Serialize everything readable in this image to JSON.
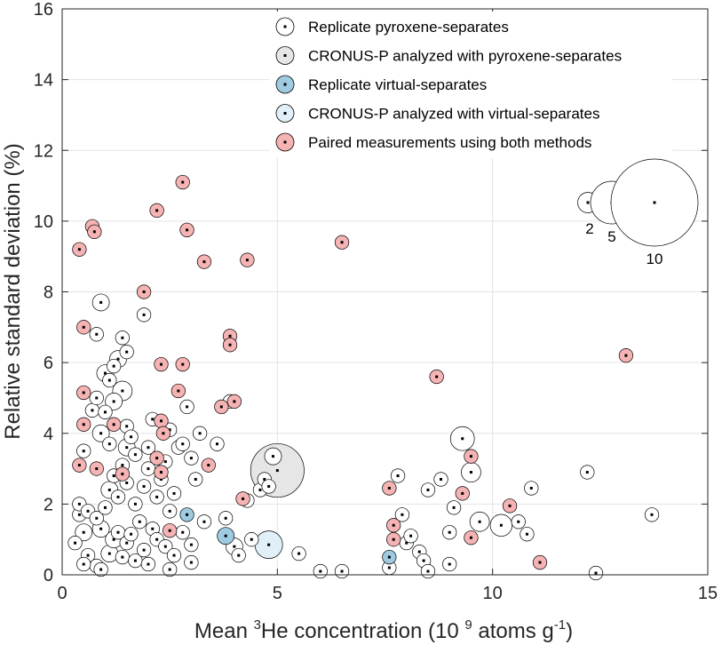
{
  "chart_data": {
    "type": "scatter",
    "xlabel": {
      "prefix": "Mean ",
      "sup": "3",
      "mid": "He concentration (10 ",
      "sup2": "9",
      "mid2": " atoms g",
      "sup3": "-1",
      "suffix": ")"
    },
    "ylabel": "Relative standard deviation (%)",
    "xlim": [
      0,
      15
    ],
    "ylim": [
      0,
      16
    ],
    "xticks": [
      "0",
      "5",
      "10",
      "15"
    ],
    "yticks": [
      "0",
      "2",
      "4",
      "6",
      "8",
      "10",
      "12",
      "14",
      "16"
    ],
    "grid": true,
    "legend_position": "top-center",
    "colors": {
      "white": "#ffffff",
      "gray": "#e6e6e6",
      "blue": "#9ecbe0",
      "lightblue": "#e1f0f8",
      "pink": "#f6b3b3",
      "edge": "#000000",
      "grid": "#e3e3e3"
    },
    "size_key": {
      "labels": [
        "2",
        "5",
        "10"
      ],
      "n": [
        2,
        5,
        10
      ]
    },
    "series": [
      {
        "name": "Replicate pyroxene-separates",
        "color": "#ffffff",
        "points": [
          [
            0.4,
            1.7,
            2
          ],
          [
            0.4,
            2.0,
            2
          ],
          [
            0.5,
            1.2,
            3
          ],
          [
            0.6,
            0.55,
            2
          ],
          [
            0.8,
            0.25,
            2
          ],
          [
            0.9,
            0.15,
            2
          ],
          [
            0.6,
            1.8,
            2
          ],
          [
            0.8,
            1.6,
            2
          ],
          [
            0.9,
            1.3,
            3
          ],
          [
            1.0,
            1.9,
            2
          ],
          [
            1.1,
            0.6,
            3
          ],
          [
            1.2,
            1.0,
            3
          ],
          [
            1.3,
            1.2,
            2
          ],
          [
            1.4,
            0.5,
            2
          ],
          [
            1.5,
            0.9,
            2
          ],
          [
            1.6,
            1.15,
            2
          ],
          [
            1.7,
            0.4,
            2
          ],
          [
            1.8,
            1.5,
            2
          ],
          [
            1.9,
            0.7,
            2
          ],
          [
            2.0,
            0.3,
            2
          ],
          [
            2.1,
            1.3,
            2
          ],
          [
            2.2,
            1.0,
            2
          ],
          [
            2.4,
            0.8,
            2
          ],
          [
            2.5,
            0.15,
            2
          ],
          [
            2.6,
            0.55,
            2
          ],
          [
            2.8,
            1.2,
            2
          ],
          [
            3.0,
            0.85,
            2
          ],
          [
            3.0,
            0.35,
            2
          ],
          [
            3.3,
            1.5,
            2
          ],
          [
            3.8,
            1.6,
            2
          ],
          [
            4.0,
            0.8,
            3
          ],
          [
            4.1,
            0.55,
            2
          ],
          [
            4.4,
            1.0,
            2
          ],
          [
            1.1,
            2.4,
            3
          ],
          [
            1.3,
            2.2,
            2
          ],
          [
            1.2,
            2.8,
            2
          ],
          [
            1.4,
            3.1,
            2
          ],
          [
            1.5,
            2.6,
            2
          ],
          [
            1.7,
            2.0,
            2
          ],
          [
            1.9,
            2.5,
            2
          ],
          [
            2.0,
            3.0,
            2
          ],
          [
            2.2,
            2.2,
            2
          ],
          [
            2.3,
            2.7,
            2
          ],
          [
            2.5,
            1.8,
            2
          ],
          [
            2.6,
            2.3,
            2
          ],
          [
            2.7,
            3.6,
            2
          ],
          [
            3.0,
            3.3,
            2
          ],
          [
            3.1,
            2.7,
            2
          ],
          [
            3.2,
            4.0,
            2
          ],
          [
            3.6,
            3.7,
            2
          ],
          [
            4.3,
            2.1,
            2
          ],
          [
            4.6,
            2.4,
            2
          ],
          [
            4.7,
            2.7,
            2
          ],
          [
            4.8,
            2.5,
            2
          ],
          [
            4.9,
            3.35,
            3
          ],
          [
            0.7,
            4.65,
            2
          ],
          [
            0.9,
            4.0,
            3
          ],
          [
            1.0,
            4.6,
            2
          ],
          [
            1.1,
            3.7,
            2
          ],
          [
            1.2,
            4.9,
            3
          ],
          [
            1.4,
            5.2,
            4
          ],
          [
            1.5,
            4.2,
            2
          ],
          [
            1.5,
            3.6,
            3
          ],
          [
            1.6,
            3.9,
            2
          ],
          [
            1.7,
            3.4,
            2
          ],
          [
            2.0,
            3.6,
            2
          ],
          [
            2.1,
            4.4,
            2
          ],
          [
            2.4,
            3.2,
            2
          ],
          [
            2.5,
            4.1,
            2
          ],
          [
            2.8,
            3.7,
            2
          ],
          [
            2.9,
            4.75,
            2
          ],
          [
            0.5,
            3.5,
            2
          ],
          [
            0.8,
            5.0,
            2
          ],
          [
            1.0,
            5.7,
            3
          ],
          [
            1.3,
            6.1,
            3
          ],
          [
            1.4,
            6.7,
            2
          ],
          [
            1.1,
            5.5,
            2
          ],
          [
            0.8,
            6.8,
            2
          ],
          [
            0.9,
            7.7,
            3
          ],
          [
            1.9,
            7.35,
            2
          ],
          [
            1.2,
            5.9,
            2
          ],
          [
            1.5,
            6.3,
            2
          ],
          [
            3.9,
            4.9,
            2
          ],
          [
            0.3,
            0.9,
            2
          ],
          [
            0.5,
            0.3,
            2
          ],
          [
            5.5,
            0.6,
            2
          ],
          [
            6.0,
            0.1,
            2
          ],
          [
            6.5,
            0.1,
            2
          ],
          [
            7.6,
            0.2,
            2
          ],
          [
            7.9,
            1.7,
            2
          ],
          [
            8.0,
            0.9,
            2
          ],
          [
            8.1,
            1.1,
            2
          ],
          [
            7.8,
            2.8,
            2
          ],
          [
            8.3,
            0.65,
            2
          ],
          [
            8.4,
            0.4,
            2
          ],
          [
            8.5,
            0.1,
            2
          ],
          [
            8.5,
            2.4,
            2
          ],
          [
            8.8,
            2.7,
            2
          ],
          [
            9.0,
            1.2,
            2
          ],
          [
            9.0,
            0.3,
            2
          ],
          [
            9.1,
            1.9,
            2
          ],
          [
            9.3,
            3.85,
            6
          ],
          [
            9.5,
            2.9,
            4
          ],
          [
            9.7,
            1.5,
            4
          ],
          [
            10.2,
            1.4,
            5
          ],
          [
            10.6,
            1.5,
            2
          ],
          [
            10.8,
            1.15,
            2
          ],
          [
            10.9,
            2.45,
            2
          ],
          [
            12.2,
            2.9,
            2
          ],
          [
            12.4,
            0.05,
            2
          ],
          [
            13.7,
            1.7,
            2
          ]
        ]
      },
      {
        "name": "CRONUS-P analyzed with pyroxene-separates",
        "color": "#e6e6e6",
        "points": [
          [
            5.0,
            2.95,
            30
          ]
        ]
      },
      {
        "name": "Replicate virtual-separates",
        "color": "#9ecbe0",
        "points": [
          [
            2.9,
            1.7,
            2
          ],
          [
            3.8,
            1.1,
            3
          ],
          [
            7.6,
            0.5,
            2
          ]
        ]
      },
      {
        "name": "CRONUS-P analyzed with virtual-separates",
        "color": "#e1f0f8",
        "points": [
          [
            4.8,
            0.85,
            8
          ]
        ]
      },
      {
        "name": "Paired measurements using both methods",
        "color": "#f6b3b3",
        "points": [
          [
            0.4,
            9.2,
            2
          ],
          [
            0.7,
            9.85,
            2
          ],
          [
            0.75,
            9.7,
            2
          ],
          [
            0.5,
            7.0,
            2
          ],
          [
            0.5,
            5.15,
            2
          ],
          [
            0.5,
            4.25,
            2
          ],
          [
            0.4,
            3.1,
            2
          ],
          [
            0.8,
            3.0,
            2
          ],
          [
            1.2,
            4.25,
            2
          ],
          [
            1.4,
            2.85,
            2
          ],
          [
            1.9,
            8.0,
            2
          ],
          [
            2.2,
            10.3,
            2
          ],
          [
            2.3,
            5.95,
            2
          ],
          [
            2.3,
            4.35,
            2
          ],
          [
            2.35,
            4.0,
            2
          ],
          [
            2.2,
            3.3,
            2
          ],
          [
            2.3,
            2.9,
            2
          ],
          [
            2.5,
            1.25,
            2
          ],
          [
            2.8,
            11.1,
            2
          ],
          [
            2.9,
            9.75,
            2
          ],
          [
            2.8,
            5.95,
            2
          ],
          [
            2.7,
            5.2,
            2
          ],
          [
            3.3,
            8.85,
            2
          ],
          [
            3.4,
            3.1,
            2
          ],
          [
            3.7,
            4.75,
            2
          ],
          [
            3.9,
            6.75,
            2
          ],
          [
            3.9,
            6.5,
            2
          ],
          [
            4.0,
            4.9,
            2
          ],
          [
            4.3,
            8.9,
            2
          ],
          [
            4.2,
            2.15,
            2
          ],
          [
            6.5,
            9.4,
            2
          ],
          [
            7.6,
            2.45,
            2
          ],
          [
            7.7,
            1.4,
            2
          ],
          [
            7.7,
            1.0,
            2
          ],
          [
            8.7,
            5.6,
            2
          ],
          [
            9.3,
            2.3,
            2
          ],
          [
            9.5,
            1.05,
            2
          ],
          [
            9.5,
            3.35,
            2
          ],
          [
            10.4,
            1.95,
            2
          ],
          [
            11.1,
            0.35,
            2
          ],
          [
            13.1,
            6.2,
            2
          ]
        ]
      }
    ]
  }
}
